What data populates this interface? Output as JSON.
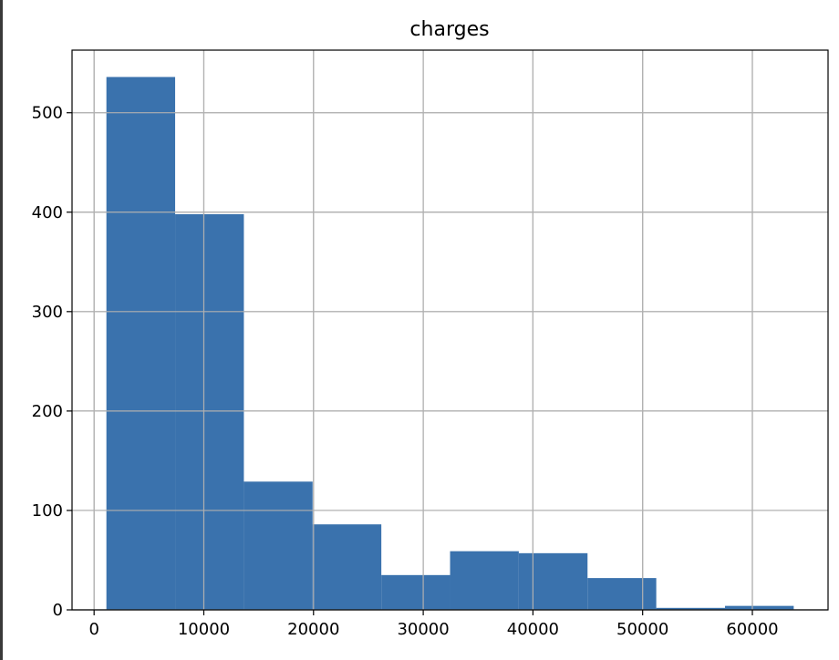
{
  "chart_data": {
    "type": "bar",
    "title": "charges",
    "xlabel": "",
    "ylabel": "",
    "bins": [
      {
        "x0": 1121.87,
        "x1": 7386.73,
        "count": 536
      },
      {
        "x0": 7386.73,
        "x1": 13651.59,
        "count": 398
      },
      {
        "x0": 13651.59,
        "x1": 19916.44,
        "count": 129
      },
      {
        "x0": 19916.44,
        "x1": 26181.3,
        "count": 86
      },
      {
        "x0": 26181.3,
        "x1": 32446.16,
        "count": 35
      },
      {
        "x0": 32446.16,
        "x1": 38711.02,
        "count": 59
      },
      {
        "x0": 38711.02,
        "x1": 44975.88,
        "count": 57
      },
      {
        "x0": 44975.88,
        "x1": 51240.74,
        "count": 32
      },
      {
        "x0": 51240.74,
        "x1": 57505.6,
        "count": 2
      },
      {
        "x0": 57505.6,
        "x1": 63770.43,
        "count": 4
      }
    ],
    "xticks": [
      0,
      10000,
      20000,
      30000,
      40000,
      50000,
      60000
    ],
    "xtick_labels": [
      "0",
      "10000",
      "20000",
      "30000",
      "40000",
      "50000",
      "60000"
    ],
    "yticks": [
      0,
      100,
      200,
      300,
      400,
      500
    ],
    "ytick_labels": [
      "0",
      "100",
      "200",
      "300",
      "400",
      "500"
    ],
    "xlim": [
      -2010,
      66900
    ],
    "ylim": [
      0,
      563
    ],
    "grid": true,
    "bar_color": "#3a72ad"
  }
}
